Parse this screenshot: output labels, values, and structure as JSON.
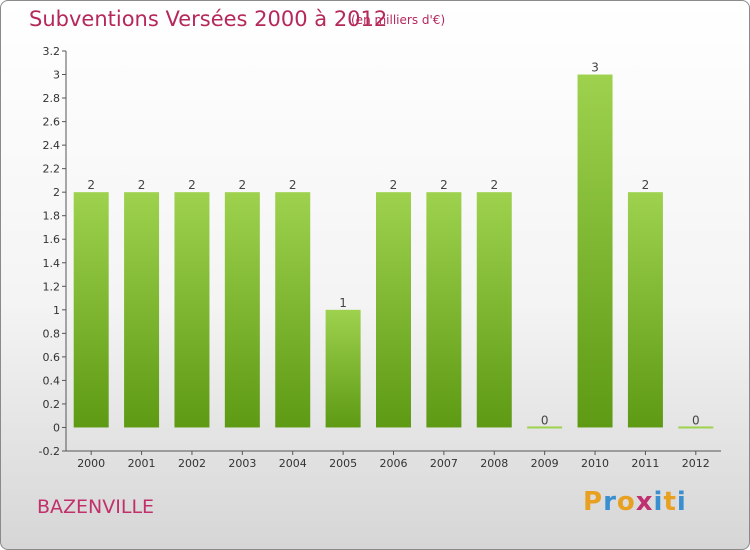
{
  "header": {
    "title": "Subventions Versées 2000 à 2012",
    "subtitle": "(en milliers d'€)"
  },
  "footer": {
    "commune": "BAZENVILLE",
    "logo_text": "Proxiti"
  },
  "colors": {
    "title": "#b5285a",
    "bar_top": "#9ed24e",
    "bar_bottom": "#5e9a14",
    "logo_letters": [
      "#e8a020",
      "#3a8fd0",
      "#e8a020",
      "#c03070",
      "#3a8fd0",
      "#e8a020",
      "#3a8fd0"
    ]
  },
  "chart_data": {
    "type": "bar",
    "categories": [
      "2000",
      "2001",
      "2002",
      "2003",
      "2004",
      "2005",
      "2006",
      "2007",
      "2008",
      "2009",
      "2010",
      "2011",
      "2012"
    ],
    "values": [
      2,
      2,
      2,
      2,
      2,
      1,
      2,
      2,
      2,
      0,
      3,
      2,
      0
    ],
    "data_labels": [
      "2",
      "2",
      "2",
      "2",
      "2",
      "1",
      "2",
      "2",
      "2",
      "0",
      "3",
      "2",
      "0"
    ],
    "title": "Subventions Versées 2000 à 2012",
    "xlabel": "",
    "ylabel": "",
    "ylim": [
      -0.2,
      3.2
    ],
    "yticks": [
      "-0.2",
      "0",
      "0.2",
      "0.4",
      "0.6",
      "0.8",
      "1",
      "1.2",
      "1.4",
      "1.6",
      "1.8",
      "2",
      "2.2",
      "2.4",
      "2.6",
      "2.8",
      "3",
      "3.2"
    ],
    "ytick_values": [
      -0.2,
      0,
      0.2,
      0.4,
      0.6,
      0.8,
      1,
      1.2,
      1.4,
      1.6,
      1.8,
      2,
      2.2,
      2.4,
      2.6,
      2.8,
      3,
      3.2
    ],
    "grid": false,
    "legend": "none"
  }
}
